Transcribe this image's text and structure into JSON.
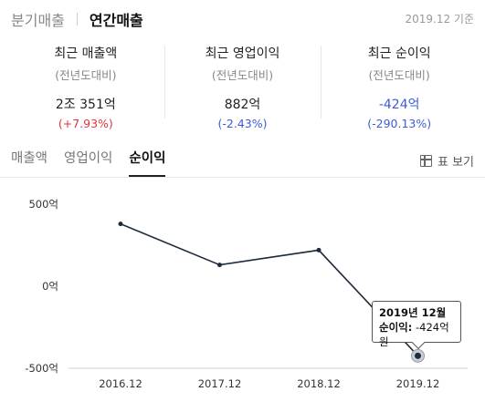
{
  "header": {
    "tabs": [
      {
        "label": "분기매출",
        "active": false
      },
      {
        "label": "연간매출",
        "active": true
      }
    ],
    "date_note": "2019.12 기준"
  },
  "metrics": [
    {
      "title": "최근 매출액",
      "sub": "(전년도대비)",
      "value": "2조 351억",
      "change": "(+7.93%)",
      "trend": "up"
    },
    {
      "title": "최근 영업이익",
      "sub": "(전년도대비)",
      "value": "882억",
      "change": "(-2.43%)",
      "trend": "down"
    },
    {
      "title": "최근 순이익",
      "sub": "(전년도대비)",
      "value": "-424억",
      "change": "(-290.13%)",
      "trend": "down"
    }
  ],
  "chart_tabs": [
    {
      "label": "매출액",
      "active": false
    },
    {
      "label": "영업이익",
      "active": false
    },
    {
      "label": "순이익",
      "active": true
    }
  ],
  "table_view_label": "표 보기",
  "tooltip": {
    "date": "2019년 12월",
    "label": "순이익:",
    "value": "-424억원"
  },
  "colors": {
    "line": "#1e2b3c",
    "positive": "#e0353b",
    "negative": "#3d5bd9"
  },
  "chart_data": {
    "type": "line",
    "categories": [
      "2016.12",
      "2017.12",
      "2018.12",
      "2019.12"
    ],
    "series": [
      {
        "values": [
          380,
          130,
          220,
          -424
        ]
      }
    ],
    "y_ticks": [
      500,
      0,
      -500
    ],
    "y_tick_labels": [
      "500억",
      "0억",
      "-500억"
    ],
    "ylim": [
      -500,
      500
    ],
    "grid": false,
    "highlight_index": 3
  }
}
